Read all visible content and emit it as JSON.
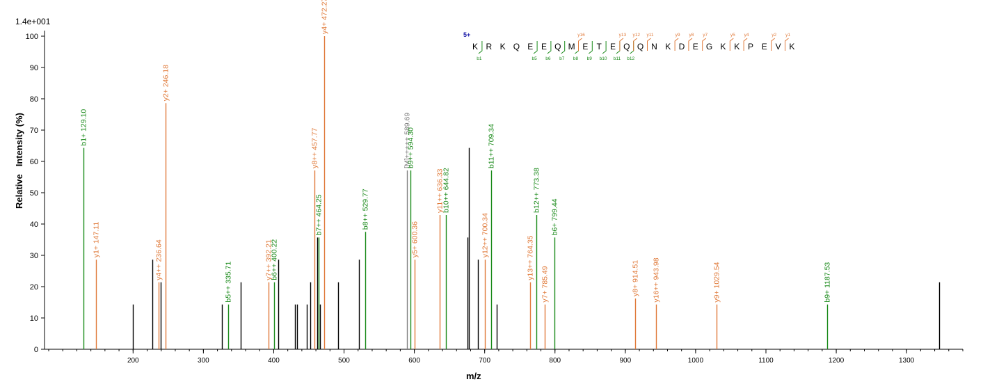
{
  "chart_data": {
    "type": "bar",
    "subtype": "mass-spectrum",
    "intensity_scale": "1.4e+001",
    "xlabel": "m/z",
    "ylabel": "Relative   Intensity (%)",
    "xlim": [
      80,
      1380
    ],
    "ylim": [
      0,
      100
    ],
    "x_ticks": [
      200,
      300,
      400,
      500,
      600,
      700,
      800,
      900,
      1000,
      1100,
      1200,
      1300
    ],
    "y_ticks": [
      0,
      10,
      20,
      30,
      40,
      50,
      60,
      70,
      80,
      90,
      100
    ],
    "colors": {
      "b_ion": "#1a8a1a",
      "y_ion": "#e07a3a",
      "precursor": "#808080",
      "unassigned": "#000000"
    },
    "peaks": [
      {
        "mz": 129.1,
        "intensity": 64.3,
        "ion": "b",
        "label": "b1+ 129.10"
      },
      {
        "mz": 147.11,
        "intensity": 28.6,
        "ion": "y",
        "label": "y1+ 147.11"
      },
      {
        "mz": 200.0,
        "intensity": 14.3,
        "ion": "none",
        "label": ""
      },
      {
        "mz": 227.5,
        "intensity": 28.6,
        "ion": "none",
        "label": ""
      },
      {
        "mz": 236.64,
        "intensity": 21.4,
        "ion": "y",
        "label": "y4++ 236.64"
      },
      {
        "mz": 239.0,
        "intensity": 21.4,
        "ion": "none",
        "label": ""
      },
      {
        "mz": 246.18,
        "intensity": 78.6,
        "ion": "y",
        "label": "y2+ 246.18"
      },
      {
        "mz": 326.5,
        "intensity": 14.3,
        "ion": "none",
        "label": ""
      },
      {
        "mz": 335.71,
        "intensity": 14.3,
        "ion": "b",
        "label": "b5++ 335.71"
      },
      {
        "mz": 353.0,
        "intensity": 21.4,
        "ion": "none",
        "label": ""
      },
      {
        "mz": 392.21,
        "intensity": 21.4,
        "ion": "y",
        "label": "y7++ 392.21"
      },
      {
        "mz": 400.22,
        "intensity": 21.4,
        "ion": "b",
        "label": "b6++ 400.22"
      },
      {
        "mz": 406.5,
        "intensity": 28.6,
        "ion": "none",
        "label": ""
      },
      {
        "mz": 430.0,
        "intensity": 14.3,
        "ion": "none",
        "label": ""
      },
      {
        "mz": 433.5,
        "intensity": 14.3,
        "ion": "none",
        "label": ""
      },
      {
        "mz": 447.5,
        "intensity": 14.3,
        "ion": "none",
        "label": ""
      },
      {
        "mz": 451.5,
        "intensity": 21.4,
        "ion": "none",
        "label": ""
      },
      {
        "mz": 457.77,
        "intensity": 57.1,
        "ion": "y",
        "label": "y8++ 457.77"
      },
      {
        "mz": 462.0,
        "intensity": 35.7,
        "ion": "none",
        "label": ""
      },
      {
        "mz": 464.25,
        "intensity": 35.7,
        "ion": "b",
        "label": "b7++ 464.25"
      },
      {
        "mz": 465.8,
        "intensity": 14.3,
        "ion": "none",
        "label": ""
      },
      {
        "mz": 472.27,
        "intensity": 100.0,
        "ion": "y",
        "label": "y4+ 472.27"
      },
      {
        "mz": 492.0,
        "intensity": 21.4,
        "ion": "none",
        "label": ""
      },
      {
        "mz": 521.0,
        "intensity": 28.6,
        "ion": "none",
        "label": ""
      },
      {
        "mz": 529.77,
        "intensity": 37.5,
        "ion": "b",
        "label": "b8++ 529.77"
      },
      {
        "mz": 589.69,
        "intensity": 57.1,
        "ion": "precursor",
        "label": "[M]+++++ 589.69"
      },
      {
        "mz": 594.3,
        "intensity": 57.1,
        "ion": "b",
        "label": "b9++ 594.30"
      },
      {
        "mz": 600.36,
        "intensity": 28.6,
        "ion": "y",
        "label": "y5+ 600.36"
      },
      {
        "mz": 636.33,
        "intensity": 42.9,
        "ion": "y",
        "label": "y11++ 636.33"
      },
      {
        "mz": 644.82,
        "intensity": 42.9,
        "ion": "b",
        "label": "b10++ 644.82"
      },
      {
        "mz": 676.0,
        "intensity": 35.7,
        "ion": "none",
        "label": ""
      },
      {
        "mz": 678.0,
        "intensity": 64.3,
        "ion": "none",
        "label": ""
      },
      {
        "mz": 690.0,
        "intensity": 28.6,
        "ion": "none",
        "label": ""
      },
      {
        "mz": 700.34,
        "intensity": 28.6,
        "ion": "y",
        "label": "y12++ 700.34"
      },
      {
        "mz": 709.34,
        "intensity": 57.1,
        "ion": "b",
        "label": "b11++ 709.34"
      },
      {
        "mz": 717.5,
        "intensity": 14.3,
        "ion": "none",
        "label": ""
      },
      {
        "mz": 764.35,
        "intensity": 21.4,
        "ion": "y",
        "label": "y13++ 764.35"
      },
      {
        "mz": 773.38,
        "intensity": 42.9,
        "ion": "b",
        "label": "b12++ 773.38"
      },
      {
        "mz": 785.49,
        "intensity": 14.3,
        "ion": "y",
        "label": "y7+ 785.49"
      },
      {
        "mz": 799.44,
        "intensity": 35.7,
        "ion": "b",
        "label": "b6+ 799.44"
      },
      {
        "mz": 914.51,
        "intensity": 16.2,
        "ion": "y",
        "label": "y8+ 914.51"
      },
      {
        "mz": 943.98,
        "intensity": 14.3,
        "ion": "y",
        "label": "y16++ 943.98"
      },
      {
        "mz": 1029.54,
        "intensity": 14.3,
        "ion": "y",
        "label": "y9+ 1029.54"
      },
      {
        "mz": 1187.53,
        "intensity": 14.3,
        "ion": "b",
        "label": "b9+ 1187.53"
      },
      {
        "mz": 1346.0,
        "intensity": 21.4,
        "ion": "none",
        "label": ""
      }
    ],
    "sequence": {
      "charge_label": "5+",
      "residues": [
        "K",
        "R",
        "K",
        "Q",
        "E",
        "E",
        "Q",
        "M",
        "E",
        "T",
        "E",
        "Q",
        "Q",
        "N",
        "K",
        "D",
        "E",
        "G",
        "K",
        "K",
        "P",
        "E",
        "V",
        "K"
      ],
      "b_labels": [
        {
          "after_residue": 1,
          "text": "b1"
        },
        {
          "after_residue": 5,
          "text": "b5"
        },
        {
          "after_residue": 6,
          "text": "b6"
        },
        {
          "after_residue": 7,
          "text": "b7"
        },
        {
          "after_residue": 8,
          "text": "b8"
        },
        {
          "after_residue": 9,
          "text": "b9"
        },
        {
          "after_residue": 10,
          "text": "b10"
        },
        {
          "after_residue": 11,
          "text": "b11"
        },
        {
          "after_residue": 12,
          "text": "b12"
        }
      ],
      "y_labels": [
        {
          "after_residue": 8,
          "text": "y16"
        },
        {
          "after_residue": 11,
          "text": "y13"
        },
        {
          "after_residue": 12,
          "text": "y12"
        },
        {
          "after_residue": 13,
          "text": "y11"
        },
        {
          "after_residue": 15,
          "text": "y9"
        },
        {
          "after_residue": 16,
          "text": "y8"
        },
        {
          "after_residue": 17,
          "text": "y7"
        },
        {
          "after_residue": 19,
          "text": "y5"
        },
        {
          "after_residue": 20,
          "text": "y4"
        },
        {
          "after_residue": 22,
          "text": "y2"
        },
        {
          "after_residue": 23,
          "text": "y1"
        }
      ]
    }
  }
}
